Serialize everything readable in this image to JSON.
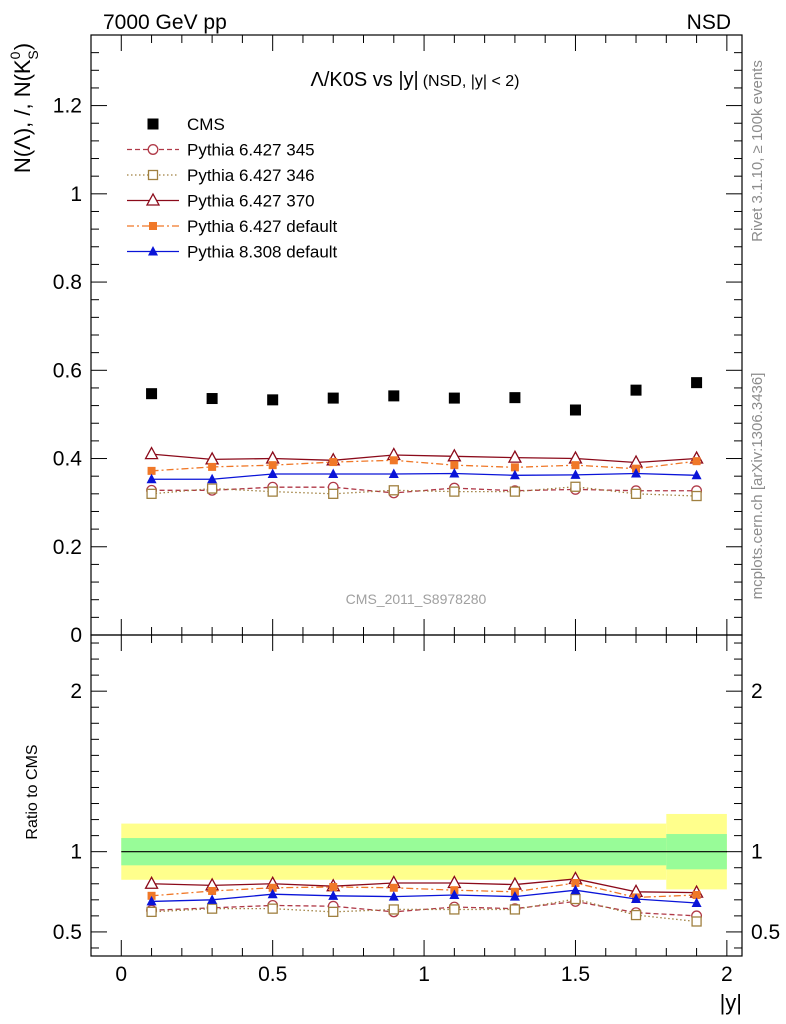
{
  "header": {
    "left": "7000 GeV pp",
    "right": "NSD"
  },
  "side_labels": {
    "rivet": "Rivet 3.1.10, ≥ 100k events",
    "mcplots": "mcplots.cern.ch [arXiv:1306.3436]"
  },
  "watermark": "CMS_2011_S8978280",
  "chart_data": [
    {
      "type": "scatter",
      "title": "Λ/K0S vs |y|",
      "title_sub": "(NSD, |y| < 2)",
      "ylabel": "N(Λ), /, N(K",
      "ylabel_sup": "0",
      "ylabel_sub": "S",
      "ylabel_close": ")",
      "xlabel": "|y|",
      "xlim": [
        -0.1,
        2.05
      ],
      "ylim": [
        0,
        1.36
      ],
      "yticks": [
        0,
        0.2,
        0.4,
        0.6,
        0.8,
        1,
        1.2
      ],
      "ytick_labels": [
        "0",
        "0.2",
        "0.4",
        "0.6",
        "0.8",
        "1",
        "1.2"
      ],
      "x": [
        0.1,
        0.3,
        0.5,
        0.7,
        0.9,
        1.1,
        1.3,
        1.5,
        1.7,
        1.9
      ],
      "legend": {
        "position": "top-left"
      },
      "series": [
        {
          "name": "CMS",
          "color": "#000000",
          "marker": "square-filled",
          "line": "none",
          "values": [
            0.547,
            0.536,
            0.533,
            0.537,
            0.542,
            0.537,
            0.538,
            0.51,
            0.555,
            0.572
          ]
        },
        {
          "name": "Pythia 6.427 345",
          "color": "#b03a48",
          "marker": "circle-open",
          "line": "dashed",
          "values": [
            0.328,
            0.328,
            0.335,
            0.335,
            0.322,
            0.333,
            0.327,
            0.33,
            0.327,
            0.327
          ]
        },
        {
          "name": "Pythia 6.427 346",
          "color": "#a08040",
          "marker": "square-open",
          "line": "dotted",
          "values": [
            0.32,
            0.332,
            0.325,
            0.32,
            0.328,
            0.325,
            0.325,
            0.336,
            0.32,
            0.315
          ]
        },
        {
          "name": "Pythia 6.427 370",
          "color": "#8b0a1a",
          "marker": "triangle-open",
          "line": "solid",
          "values": [
            0.41,
            0.398,
            0.4,
            0.396,
            0.408,
            0.405,
            0.402,
            0.4,
            0.391,
            0.4
          ]
        },
        {
          "name": "Pythia 6.427 default",
          "color": "#f07828",
          "marker": "square-filled-small",
          "line": "dashdot",
          "values": [
            0.372,
            0.381,
            0.385,
            0.392,
            0.396,
            0.385,
            0.38,
            0.385,
            0.377,
            0.394
          ]
        },
        {
          "name": "Pythia 8.308 default",
          "color": "#0a14d8",
          "marker": "triangle-filled",
          "line": "solid",
          "values": [
            0.353,
            0.353,
            0.365,
            0.365,
            0.365,
            0.366,
            0.362,
            0.363,
            0.366,
            0.362
          ]
        }
      ]
    },
    {
      "type": "scatter",
      "title": "ratio",
      "ylabel": "Ratio to CMS",
      "xlabel": "|y|",
      "xlim": [
        -0.1,
        2.05
      ],
      "ylim": [
        0.35,
        2.35
      ],
      "yticks": [
        0.5,
        1,
        2
      ],
      "ytick_labels": [
        "0.5",
        "1",
        "2"
      ],
      "xticks": [
        0,
        0.5,
        1,
        1.5,
        2
      ],
      "xtick_labels": [
        "0",
        "0.5",
        "1",
        "1.5",
        "2"
      ],
      "x": [
        0.1,
        0.3,
        0.5,
        0.7,
        0.9,
        1.1,
        1.3,
        1.5,
        1.7,
        1.9
      ],
      "bands": [
        {
          "name": "total uncertainty",
          "color": "#ffff8c",
          "segments": [
            {
              "x0": 0.0,
              "x1": 1.8,
              "lo": 0.825,
              "hi": 1.175
            },
            {
              "x0": 1.8,
              "x1": 2.0,
              "lo": 0.765,
              "hi": 1.235
            }
          ]
        },
        {
          "name": "stat uncertainty",
          "color": "#98fc98",
          "segments": [
            {
              "x0": 0.0,
              "x1": 1.8,
              "lo": 0.915,
              "hi": 1.085
            },
            {
              "x0": 1.8,
              "x1": 2.0,
              "lo": 0.89,
              "hi": 1.11
            }
          ]
        }
      ],
      "reference": 1,
      "series": [
        {
          "name": "Pythia 6.427 345",
          "color": "#b03a48",
          "marker": "circle-open",
          "line": "dashed",
          "values": [
            0.635,
            0.65,
            0.665,
            0.66,
            0.625,
            0.655,
            0.645,
            0.69,
            0.62,
            0.6
          ]
        },
        {
          "name": "Pythia 6.427 346",
          "color": "#a08040",
          "marker": "square-open",
          "line": "dotted",
          "values": [
            0.625,
            0.645,
            0.645,
            0.625,
            0.64,
            0.64,
            0.64,
            0.705,
            0.605,
            0.565
          ]
        },
        {
          "name": "Pythia 6.427 370",
          "color": "#8b0a1a",
          "marker": "triangle-open",
          "line": "solid",
          "values": [
            0.8,
            0.79,
            0.8,
            0.785,
            0.805,
            0.805,
            0.795,
            0.83,
            0.75,
            0.745
          ]
        },
        {
          "name": "Pythia 6.427 default",
          "color": "#f07828",
          "marker": "square-filled-small",
          "line": "dashdot",
          "values": [
            0.725,
            0.755,
            0.775,
            0.78,
            0.775,
            0.76,
            0.75,
            0.805,
            0.715,
            0.73
          ]
        },
        {
          "name": "Pythia 8.308 default",
          "color": "#0a14d8",
          "marker": "triangle-filled",
          "line": "solid",
          "values": [
            0.69,
            0.7,
            0.735,
            0.725,
            0.72,
            0.73,
            0.72,
            0.76,
            0.705,
            0.68
          ]
        }
      ]
    }
  ]
}
